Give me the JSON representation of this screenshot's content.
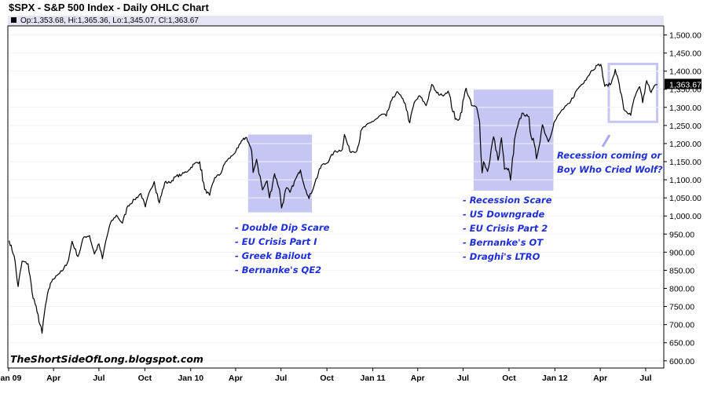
{
  "header": {
    "title": "$SPX - S&P 500 Index - Daily OHLC Chart",
    "ohlc_readout": "Op:1,353.68, Hi:1,365.36, Lo:1,345.07, Cl:1,363.67"
  },
  "watermark": "TheShortSideOfLong.blogspot.com",
  "colors": {
    "price_line": "#000000",
    "highlight_fill": "#c6c6f4",
    "annotation_text": "#1f2fd8",
    "header_band": "#e4e4f5",
    "last_price_tag": "#000000"
  },
  "annotations": {
    "box1_lines": [
      "- Double Dip Scare",
      "- EU Crisis Part I",
      "- Greek Bailout",
      "- Bernanke's QE2"
    ],
    "box2_lines": [
      "- Recession Scare",
      "- US Downgrade",
      "- EU Crisis Part 2",
      "- Bernanke's OT",
      "- Draghi's LTRO"
    ],
    "box3_lines": [
      "Recession coming or",
      "Boy Who Cried Wolf?"
    ]
  },
  "chart_data": {
    "type": "line",
    "title": "$SPX - S&P 500 Index - Daily OHLC Chart",
    "ylim": [
      580,
      1525
    ],
    "y_ticks": [
      600,
      650,
      700,
      750,
      800,
      850,
      900,
      950,
      1000,
      1050,
      1100,
      1150,
      1200,
      1250,
      1300,
      1350,
      1400,
      1450,
      1500
    ],
    "y_tick_labels": [
      "600.00",
      "650.00",
      "700.00",
      "750.00",
      "800.00",
      "850.00",
      "900.00",
      "950.00",
      "1,000.00",
      "1,050.00",
      "1,100.00",
      "1,150.00",
      "1,200.00",
      "1,250.00",
      "1,300.00",
      "1,350.00",
      "1,400.00",
      "1,450.00",
      "1,500.00"
    ],
    "x_range": [
      "2009-01-01",
      "2012-07-31"
    ],
    "x_ticks": [
      {
        "date": "2009-01-01",
        "label": "Jan 09"
      },
      {
        "date": "2009-04-01",
        "label": "Apr"
      },
      {
        "date": "2009-07-01",
        "label": "Jul"
      },
      {
        "date": "2009-10-01",
        "label": "Oct"
      },
      {
        "date": "2010-01-01",
        "label": "Jan 10"
      },
      {
        "date": "2010-04-01",
        "label": "Apr"
      },
      {
        "date": "2010-07-01",
        "label": "Jul"
      },
      {
        "date": "2010-10-01",
        "label": "Oct"
      },
      {
        "date": "2011-01-01",
        "label": "Jan 11"
      },
      {
        "date": "2011-04-01",
        "label": "Apr"
      },
      {
        "date": "2011-07-01",
        "label": "Jul"
      },
      {
        "date": "2011-10-01",
        "label": "Oct"
      },
      {
        "date": "2012-01-01",
        "label": "Jan 12"
      },
      {
        "date": "2012-04-01",
        "label": "Apr"
      },
      {
        "date": "2012-07-01",
        "label": "Jul"
      }
    ],
    "last_price_label": "1,363.67",
    "last_close": 1363.67,
    "series": [
      {
        "x": [
          "2009-01-02",
          "2009-01-12",
          "2009-01-20",
          "2009-01-28",
          "2009-02-09",
          "2009-02-17",
          "2009-02-27",
          "2009-03-09",
          "2009-03-16",
          "2009-03-26",
          "2009-04-06",
          "2009-04-20",
          "2009-05-01",
          "2009-05-08",
          "2009-05-20",
          "2009-06-01",
          "2009-06-12",
          "2009-06-22",
          "2009-07-01",
          "2009-07-08",
          "2009-07-15",
          "2009-07-24",
          "2009-08-05",
          "2009-08-17",
          "2009-08-28",
          "2009-09-10",
          "2009-09-23",
          "2009-10-02",
          "2009-10-12",
          "2009-10-20",
          "2009-10-30",
          "2009-11-10",
          "2009-11-20",
          "2009-12-03",
          "2009-12-14",
          "2009-12-28",
          "2010-01-08",
          "2010-01-19",
          "2010-01-29",
          "2010-02-08",
          "2010-02-18",
          "2010-03-01",
          "2010-03-12",
          "2010-03-25",
          "2010-04-06",
          "2010-04-15",
          "2010-04-23",
          "2010-05-03",
          "2010-05-06",
          "2010-05-13",
          "2010-05-25",
          "2010-06-03",
          "2010-06-08",
          "2010-06-18",
          "2010-06-28",
          "2010-07-02",
          "2010-07-12",
          "2010-07-19",
          "2010-07-30",
          "2010-08-09",
          "2010-08-20",
          "2010-08-26",
          "2010-09-07",
          "2010-09-20",
          "2010-10-01",
          "2010-10-15",
          "2010-11-01",
          "2010-11-05",
          "2010-11-16",
          "2010-11-30",
          "2010-12-10",
          "2010-12-28",
          "2011-01-10",
          "2011-01-20",
          "2011-01-28",
          "2011-02-08",
          "2011-02-18",
          "2011-02-28",
          "2011-03-07",
          "2011-03-16",
          "2011-03-25",
          "2011-04-05",
          "2011-04-18",
          "2011-04-29",
          "2011-05-09",
          "2011-05-20",
          "2011-06-01",
          "2011-06-15",
          "2011-06-24",
          "2011-07-07",
          "2011-07-18",
          "2011-07-28",
          "2011-08-03",
          "2011-08-08",
          "2011-08-11",
          "2011-08-19",
          "2011-08-31",
          "2011-09-09",
          "2011-09-16",
          "2011-09-22",
          "2011-09-30",
          "2011-10-04",
          "2011-10-14",
          "2011-10-27",
          "2011-11-08",
          "2011-11-25",
          "2011-12-07",
          "2011-12-19",
          "2011-12-30",
          "2012-01-13",
          "2012-01-31",
          "2012-02-15",
          "2012-03-01",
          "2012-03-15",
          "2012-03-26",
          "2012-04-02",
          "2012-04-10",
          "2012-04-23",
          "2012-05-01",
          "2012-05-09",
          "2012-05-18",
          "2012-06-01",
          "2012-06-08",
          "2012-06-19",
          "2012-06-25",
          "2012-07-03",
          "2012-07-12",
          "2012-07-20",
          "2012-07-24"
        ],
        "y": [
          932,
          890,
          805,
          875,
          868,
          790,
          735,
          676,
          755,
          815,
          835,
          850,
          878,
          930,
          888,
          942,
          946,
          895,
          923,
          882,
          932,
          980,
          1002,
          980,
          1028,
          1045,
          1062,
          1025,
          1072,
          1095,
          1036,
          1093,
          1092,
          1110,
          1114,
          1127,
          1144,
          1150,
          1073,
          1057,
          1106,
          1115,
          1150,
          1166,
          1188,
          1210,
          1217,
          1180,
          1120,
          1157,
          1072,
          1097,
          1050,
          1117,
          1074,
          1022,
          1078,
          1065,
          1101,
          1127,
          1071,
          1048,
          1092,
          1140,
          1146,
          1176,
          1184,
          1225,
          1178,
          1180,
          1240,
          1258,
          1270,
          1281,
          1276,
          1320,
          1343,
          1327,
          1310,
          1257,
          1313,
          1332,
          1305,
          1363,
          1340,
          1333,
          1345,
          1267,
          1268,
          1353,
          1305,
          1300,
          1260,
          1119,
          1150,
          1123,
          1219,
          1154,
          1216,
          1129,
          1131,
          1099,
          1224,
          1284,
          1275,
          1158,
          1252,
          1205,
          1257,
          1289,
          1312,
          1350,
          1374,
          1402,
          1416,
          1419,
          1358,
          1366,
          1405,
          1364,
          1295,
          1278,
          1325,
          1357,
          1313,
          1374,
          1341,
          1362,
          1363.67
        ]
      }
    ],
    "highlight_regions": [
      {
        "x_start": "2010-04-26",
        "x_end": "2010-09-01",
        "y_low": 1010,
        "y_high": 1225
      },
      {
        "x_start": "2011-07-22",
        "x_end": "2011-12-29",
        "y_low": 1070,
        "y_high": 1350
      },
      {
        "x_start": "2012-04-18",
        "x_end": "2012-07-24",
        "y_low": 1260,
        "y_high": 1420
      }
    ]
  }
}
